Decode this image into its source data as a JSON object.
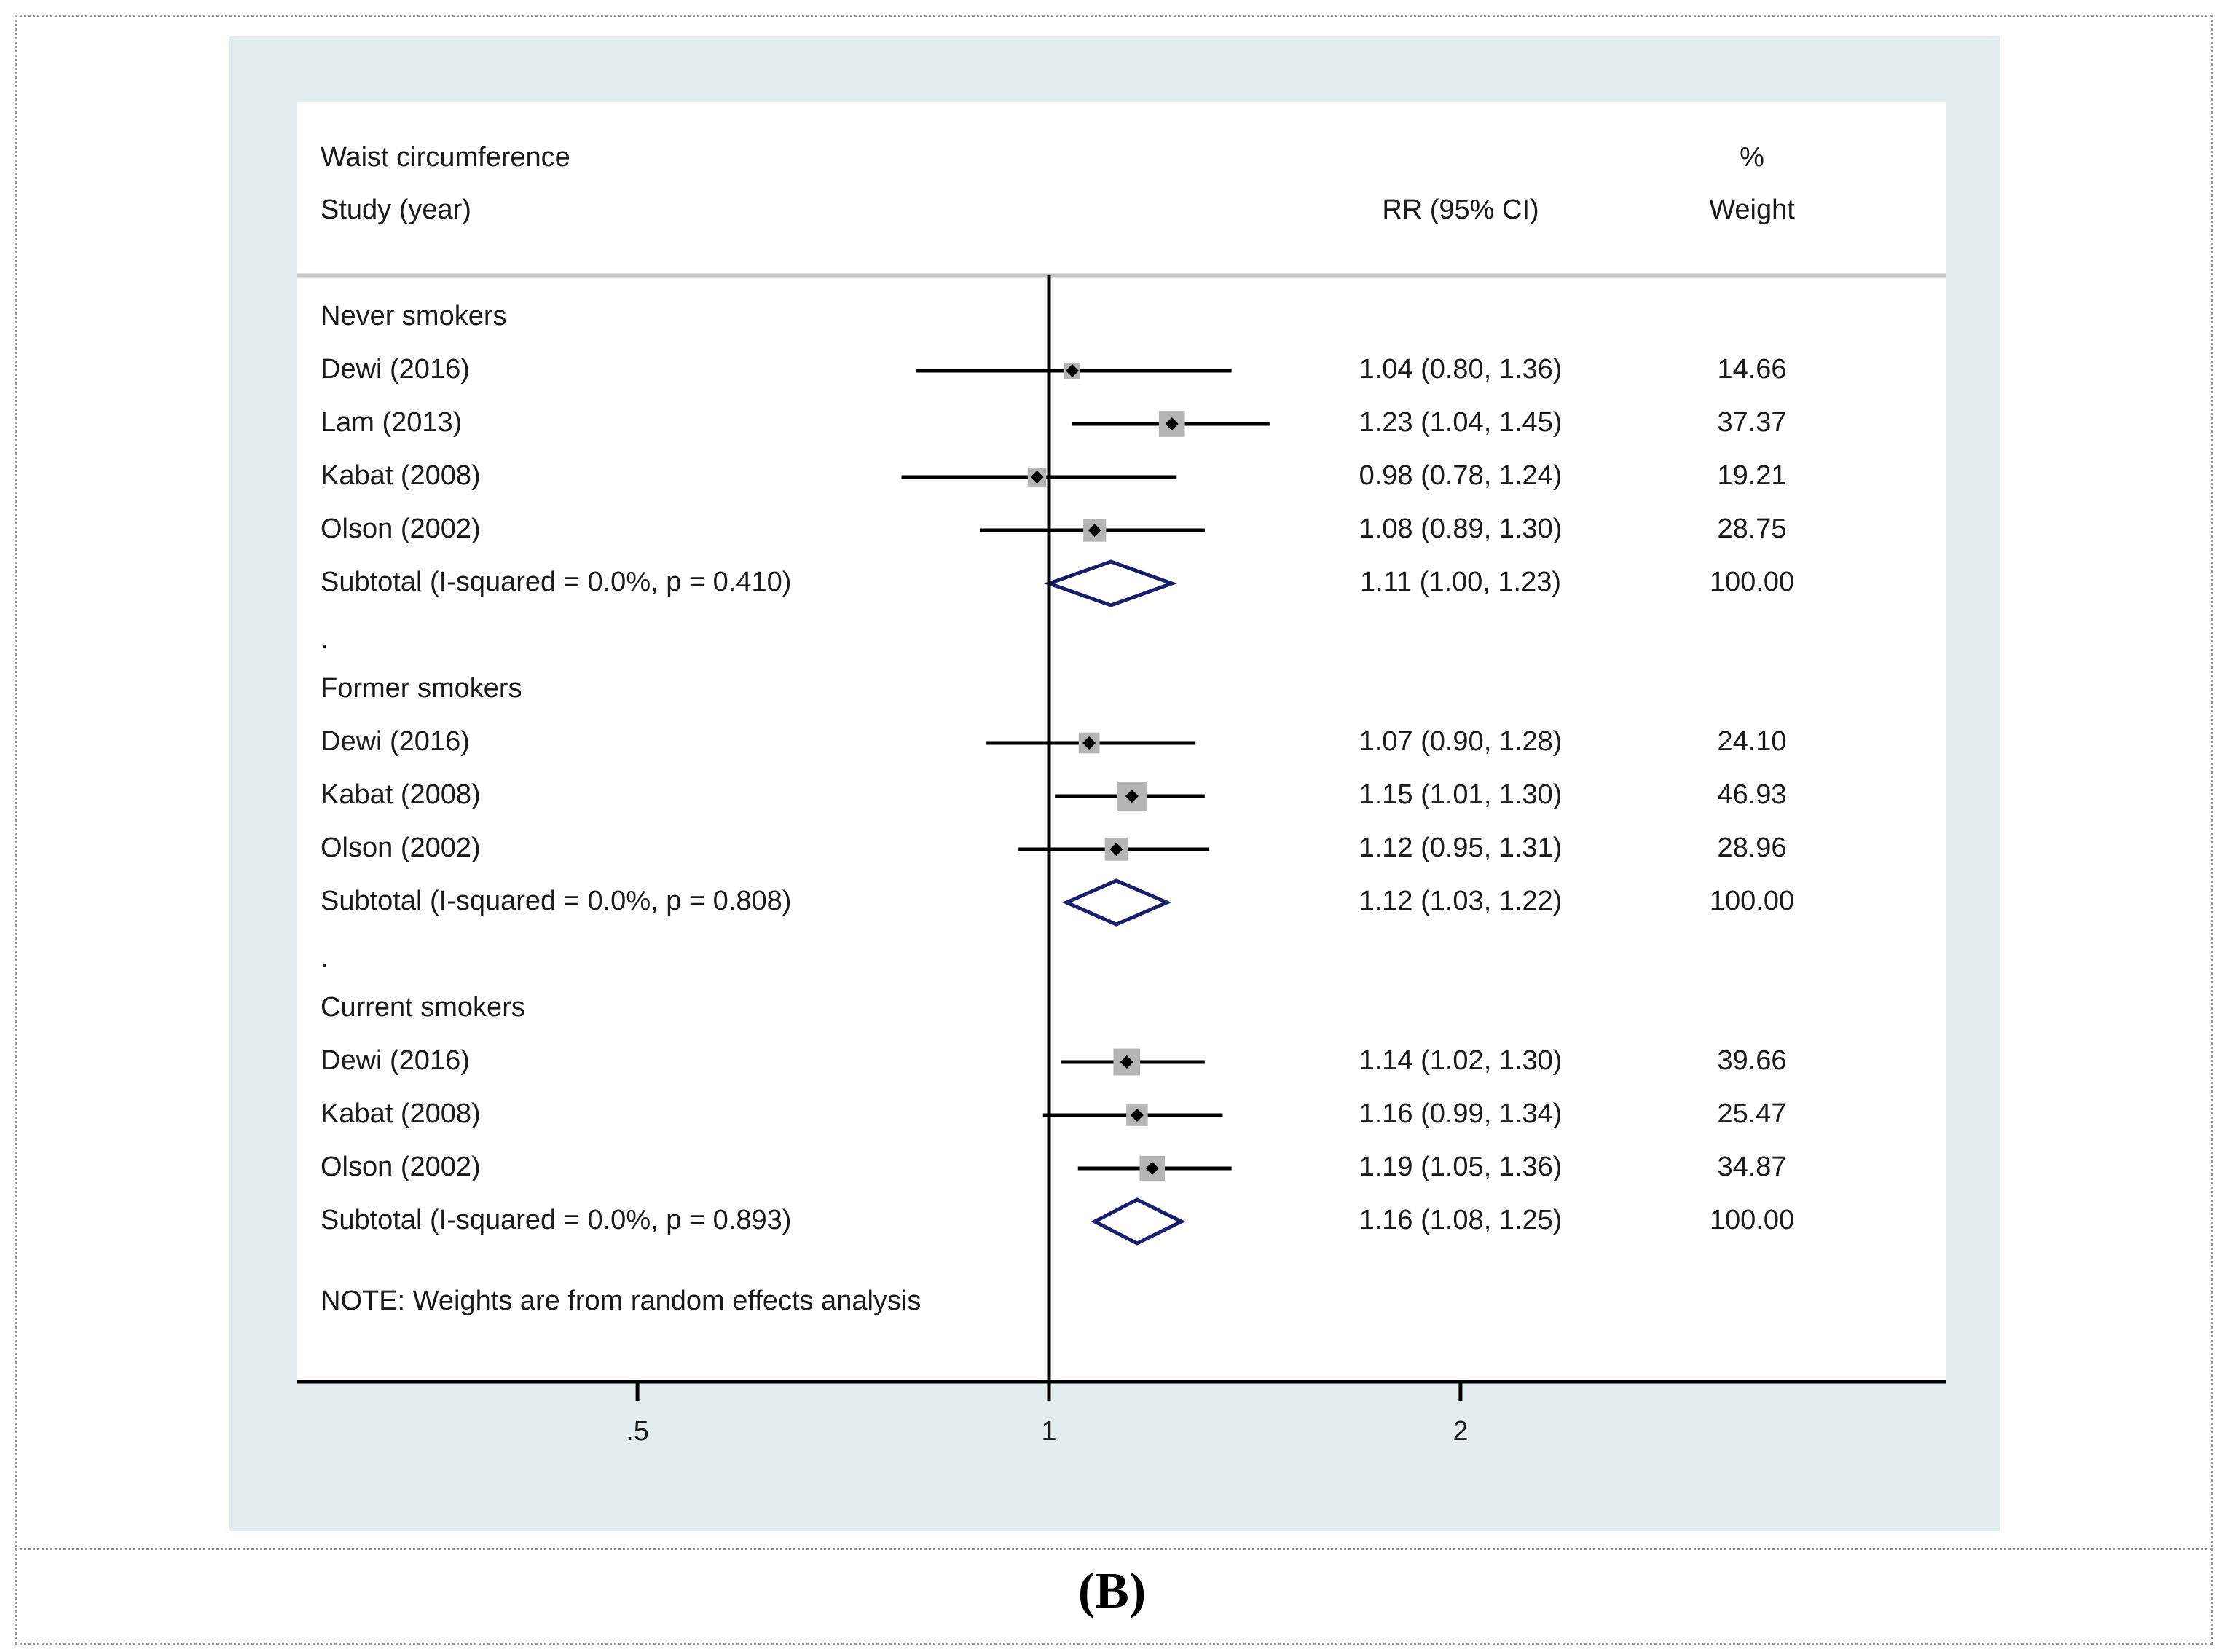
{
  "chart_data": {
    "type": "forest",
    "title": "Waist circumference",
    "header": {
      "study_label": "Study (year)",
      "rr_label": "RR (95% CI)",
      "weight_label_line1": "%",
      "weight_label_line2": "Weight"
    },
    "x_axis": {
      "scale": "log",
      "reference_line": 1,
      "ticks": [
        {
          "value": 0.5,
          "label": ".5"
        },
        {
          "value": 1,
          "label": "1"
        },
        {
          "value": 2,
          "label": "2"
        }
      ]
    },
    "groups": [
      {
        "name": "Never smokers",
        "studies": [
          {
            "label": "Dewi  (2016)",
            "rr": 1.04,
            "lo": 0.8,
            "hi": 1.36,
            "ci_text": "1.04 (0.80, 1.36)",
            "weight": 14.66,
            "weight_text": "14.66"
          },
          {
            "label": "Lam (2013)",
            "rr": 1.23,
            "lo": 1.04,
            "hi": 1.45,
            "ci_text": "1.23 (1.04, 1.45)",
            "weight": 37.37,
            "weight_text": "37.37"
          },
          {
            "label": "Kabat  (2008)",
            "rr": 0.98,
            "lo": 0.78,
            "hi": 1.24,
            "ci_text": "0.98 (0.78, 1.24)",
            "weight": 19.21,
            "weight_text": "19.21"
          },
          {
            "label": "Olson  (2002)",
            "rr": 1.08,
            "lo": 0.89,
            "hi": 1.3,
            "ci_text": "1.08 (0.89, 1.30)",
            "weight": 28.75,
            "weight_text": "28.75"
          }
        ],
        "subtotal": {
          "label": "Subtotal  (I-squared = 0.0%, p = 0.410)",
          "rr": 1.11,
          "lo": 1.0,
          "hi": 1.23,
          "ci_text": "1.11 (1.00, 1.23)",
          "weight_text": "100.00"
        }
      },
      {
        "name": "Former smokers",
        "studies": [
          {
            "label": "Dewi  (2016)",
            "rr": 1.07,
            "lo": 0.9,
            "hi": 1.28,
            "ci_text": "1.07 (0.90, 1.28)",
            "weight": 24.1,
            "weight_text": "24.10"
          },
          {
            "label": "Kabat  (2008)",
            "rr": 1.15,
            "lo": 1.01,
            "hi": 1.3,
            "ci_text": "1.15 (1.01, 1.30)",
            "weight": 46.93,
            "weight_text": "46.93"
          },
          {
            "label": "Olson (2002)",
            "rr": 1.12,
            "lo": 0.95,
            "hi": 1.31,
            "ci_text": "1.12 (0.95, 1.31)",
            "weight": 28.96,
            "weight_text": "28.96"
          }
        ],
        "subtotal": {
          "label": "Subtotal  (I-squared = 0.0%, p = 0.808)",
          "rr": 1.12,
          "lo": 1.03,
          "hi": 1.22,
          "ci_text": "1.12 (1.03, 1.22)",
          "weight_text": "100.00"
        }
      },
      {
        "name": "Current smokers",
        "studies": [
          {
            "label": "Dewi  (2016)",
            "rr": 1.14,
            "lo": 1.02,
            "hi": 1.3,
            "ci_text": "1.14 (1.02, 1.30)",
            "weight": 39.66,
            "weight_text": "39.66"
          },
          {
            "label": "Kabat  (2008)",
            "rr": 1.16,
            "lo": 0.99,
            "hi": 1.34,
            "ci_text": "1.16 (0.99, 1.34)",
            "weight": 25.47,
            "weight_text": "25.47"
          },
          {
            "label": "Olson (2002)",
            "rr": 1.19,
            "lo": 1.05,
            "hi": 1.36,
            "ci_text": "1.19 (1.05, 1.36)",
            "weight": 34.87,
            "weight_text": "34.87"
          }
        ],
        "subtotal": {
          "label": "Subtotal  (I-squared = 0.0%, p = 0.893)",
          "rr": 1.16,
          "lo": 1.08,
          "hi": 1.25,
          "ci_text": "1.16 (1.08, 1.25)",
          "weight_text": "100.00"
        }
      }
    ],
    "separator_text": ".",
    "note": "NOTE: Weights are from random effects analysis"
  },
  "panel_label": "(B)",
  "colors": {
    "graph_background": "#e3ecee",
    "diamond_stroke": "#1a1f6b",
    "weight_box": "#b5b5b5",
    "line": "#000000"
  }
}
